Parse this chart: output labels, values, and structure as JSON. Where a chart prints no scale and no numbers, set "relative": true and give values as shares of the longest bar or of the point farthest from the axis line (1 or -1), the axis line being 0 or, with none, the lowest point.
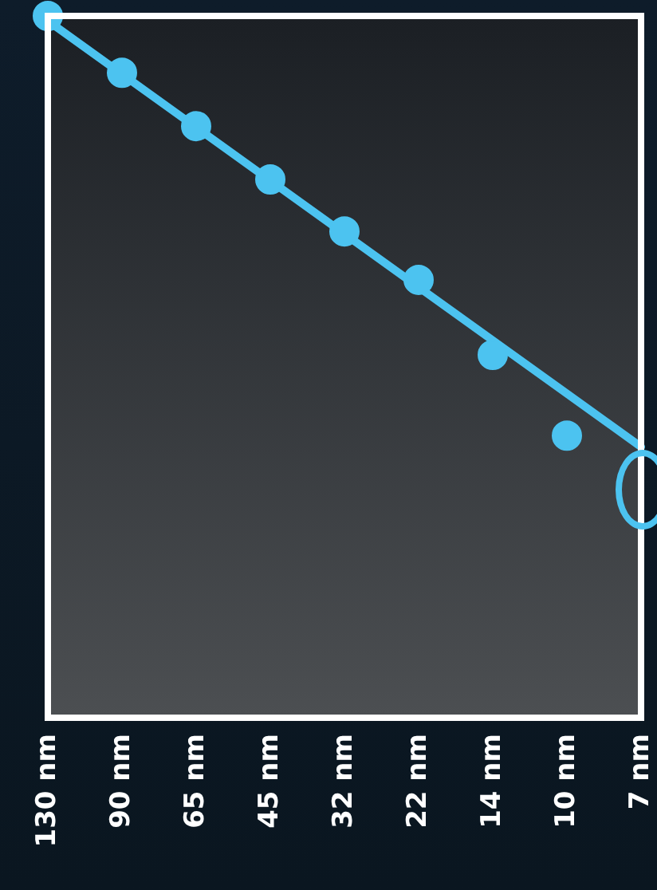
{
  "chart_data": {
    "type": "scatter",
    "relative": true,
    "categories": [
      "130 nm",
      "90 nm",
      "65 nm",
      "45 nm",
      "32 nm",
      "22 nm",
      "14 nm",
      "10 nm",
      "7 nm"
    ],
    "series": [
      {
        "color": "#4cc3f0",
        "marker": "circle",
        "values": [
          1,
          0.919,
          0.843,
          0.767,
          0.693,
          0.624,
          0.517,
          0.402,
          null
        ]
      },
      {
        "type": "line",
        "color": "#4cc3f0",
        "x": [
          "130 nm",
          "7 nm"
        ],
        "values": [
          0.993,
          0.386
        ]
      }
    ],
    "legend": false
  }
}
